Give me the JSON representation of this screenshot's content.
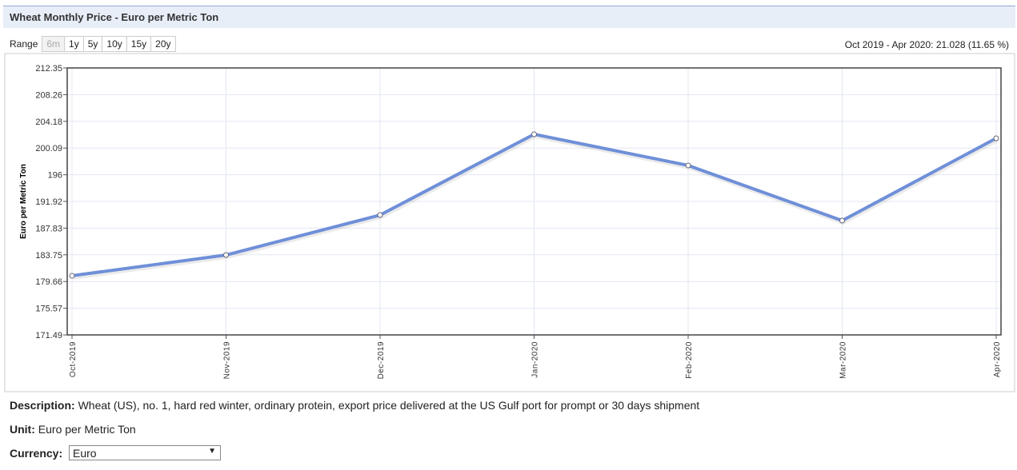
{
  "header": {
    "title": "Wheat Monthly Price - Euro per Metric Ton"
  },
  "range": {
    "label": "Range",
    "options": [
      "6m",
      "1y",
      "5y",
      "10y",
      "15y",
      "20y"
    ],
    "change": "Oct 2019 - Apr 2020: 21.028 (11.65 %)"
  },
  "chart_data": {
    "type": "line",
    "y_label": "Euro per Metric Ton",
    "categories": [
      "Oct-2019",
      "Nov-2019",
      "Dec-2019",
      "Jan-2020",
      "Feb-2020",
      "Mar-2020",
      "Apr-2020"
    ],
    "series": [
      {
        "name": "Wheat",
        "color": "#6f8fd8",
        "values": [
          180.55,
          183.72,
          189.84,
          202.2,
          197.43,
          188.98,
          201.58
        ]
      }
    ],
    "ylim": [
      171.49,
      212.35
    ],
    "yticks": [
      171.49,
      175.57,
      179.66,
      183.75,
      187.83,
      191.92,
      196,
      200.09,
      204.18,
      208.26,
      212.35
    ],
    "grid": true
  },
  "description": {
    "label": "Description:",
    "text": "Wheat (US), no. 1, hard red winter, ordinary protein, export price delivered at the US Gulf port for prompt or 30 days shipment"
  },
  "unit": {
    "label": "Unit:",
    "text": "Euro per Metric Ton"
  },
  "currency": {
    "label": "Currency:",
    "selected": "Euro"
  }
}
